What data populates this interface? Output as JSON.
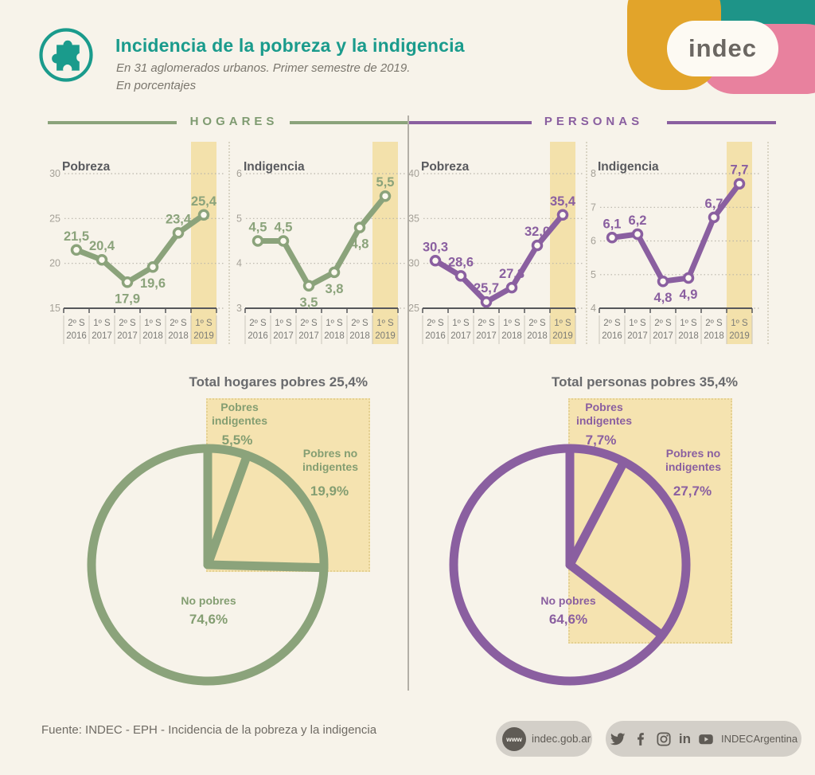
{
  "header": {
    "title": "Incidencia de la pobreza y la indigencia",
    "subtitle_line1": "En 31 aglomerados urbanos. Primer semestre de 2019.",
    "subtitle_line2": "En porcentajes",
    "logo_text": "indec"
  },
  "sections": {
    "left_label": "HOGARES",
    "right_label": "PERSONAS"
  },
  "colors": {
    "hogares_green": "#8ba37b",
    "personas_purple": "#8a5fa0",
    "teal": "#1a9b8c",
    "highlight_yellow": "#f3e1ab",
    "background": "#f7f3ea"
  },
  "chart_data": [
    {
      "type": "line",
      "group": "hogares",
      "title": "Pobreza",
      "color": "#8ba37b",
      "categories": [
        [
          "2º S",
          "2016"
        ],
        [
          "1º S",
          "2017"
        ],
        [
          "2º S",
          "2017"
        ],
        [
          "1º S",
          "2018"
        ],
        [
          "2º S",
          "2018"
        ],
        [
          "1º S",
          "2019"
        ]
      ],
      "values": [
        21.5,
        20.4,
        17.9,
        19.6,
        23.4,
        25.4
      ],
      "value_labels": [
        "21,5",
        "20,4",
        "17,9",
        "19,6",
        "23,4",
        "25,4"
      ],
      "label_pos": [
        "above",
        "above",
        "below",
        "below",
        "above",
        "above"
      ],
      "ylim": [
        15,
        30
      ],
      "yticks": [
        30,
        25,
        20,
        15
      ],
      "grid": "dotted",
      "highlight_last": true
    },
    {
      "type": "line",
      "group": "hogares",
      "title": "Indigencia",
      "color": "#8ba37b",
      "categories": [
        [
          "2º S",
          "2016"
        ],
        [
          "1º S",
          "2017"
        ],
        [
          "2º S",
          "2017"
        ],
        [
          "1º S",
          "2018"
        ],
        [
          "2º S",
          "2018"
        ],
        [
          "1º S",
          "2019"
        ]
      ],
      "values": [
        4.5,
        4.5,
        3.5,
        3.8,
        4.8,
        5.5
      ],
      "value_labels": [
        "4,5",
        "4,5",
        "3,5",
        "3,8",
        "4,8",
        "5,5"
      ],
      "label_pos": [
        "above",
        "above",
        "below",
        "below",
        "below",
        "above"
      ],
      "ylim": [
        3,
        6
      ],
      "yticks": [
        6,
        5,
        4,
        3
      ],
      "grid": "dotted",
      "highlight_last": true
    },
    {
      "type": "line",
      "group": "personas",
      "title": "Pobreza",
      "color": "#8a5fa0",
      "categories": [
        [
          "2º S",
          "2016"
        ],
        [
          "1º S",
          "2017"
        ],
        [
          "2º S",
          "2017"
        ],
        [
          "1º S",
          "2018"
        ],
        [
          "2º S",
          "2018"
        ],
        [
          "1º S",
          "2019"
        ]
      ],
      "values": [
        30.3,
        28.6,
        25.7,
        27.3,
        32.0,
        35.4
      ],
      "value_labels": [
        "30,3",
        "28,6",
        "25,7",
        "27,3",
        "32,0",
        "35,4"
      ],
      "label_pos": [
        "above",
        "above",
        "above",
        "above",
        "above",
        "above"
      ],
      "ylim": [
        25,
        40
      ],
      "yticks": [
        40,
        35,
        30,
        25
      ],
      "grid": "dotted",
      "highlight_last": true
    },
    {
      "type": "line",
      "group": "personas",
      "title": "Indigencia",
      "color": "#8a5fa0",
      "categories": [
        [
          "2º S",
          "2016"
        ],
        [
          "1º S",
          "2017"
        ],
        [
          "2º S",
          "2017"
        ],
        [
          "1º S",
          "2018"
        ],
        [
          "2º S",
          "2018"
        ],
        [
          "1º S",
          "2019"
        ]
      ],
      "values": [
        6.1,
        6.2,
        4.8,
        4.9,
        6.7,
        7.7
      ],
      "value_labels": [
        "6,1",
        "6,2",
        "4,8",
        "4,9",
        "6,7",
        "7,7"
      ],
      "label_pos": [
        "above",
        "above",
        "below",
        "below",
        "above",
        "above"
      ],
      "ylim": [
        4,
        8
      ],
      "yticks": [
        8,
        7,
        6,
        5,
        4
      ],
      "grid": "dotted",
      "highlight_last": true
    },
    {
      "type": "pie",
      "group": "hogares",
      "title": "Total hogares pobres 25,4%",
      "color": "#8ba37b",
      "slices": [
        {
          "label": "Pobres indigentes",
          "value": 5.5,
          "display": "5,5%"
        },
        {
          "label": "Pobres no indigentes",
          "value": 19.9,
          "display": "19,9%"
        },
        {
          "label": "No pobres",
          "value": 74.6,
          "display": "74,6%"
        }
      ]
    },
    {
      "type": "pie",
      "group": "personas",
      "title": "Total personas pobres 35,4%",
      "color": "#8a5fa0",
      "slices": [
        {
          "label": "Pobres indigentes",
          "value": 7.7,
          "display": "7,7%"
        },
        {
          "label": "Pobres no indigentes",
          "value": 27.7,
          "display": "27,7%"
        },
        {
          "label": "No pobres",
          "value": 64.6,
          "display": "64,6%"
        }
      ]
    }
  ],
  "footer": {
    "source": "Fuente: INDEC - EPH - Incidencia de la pobreza y la indigencia",
    "website_icon_text": "www",
    "website": "indec.gob.ar",
    "social_handle": "INDECArgentina"
  }
}
